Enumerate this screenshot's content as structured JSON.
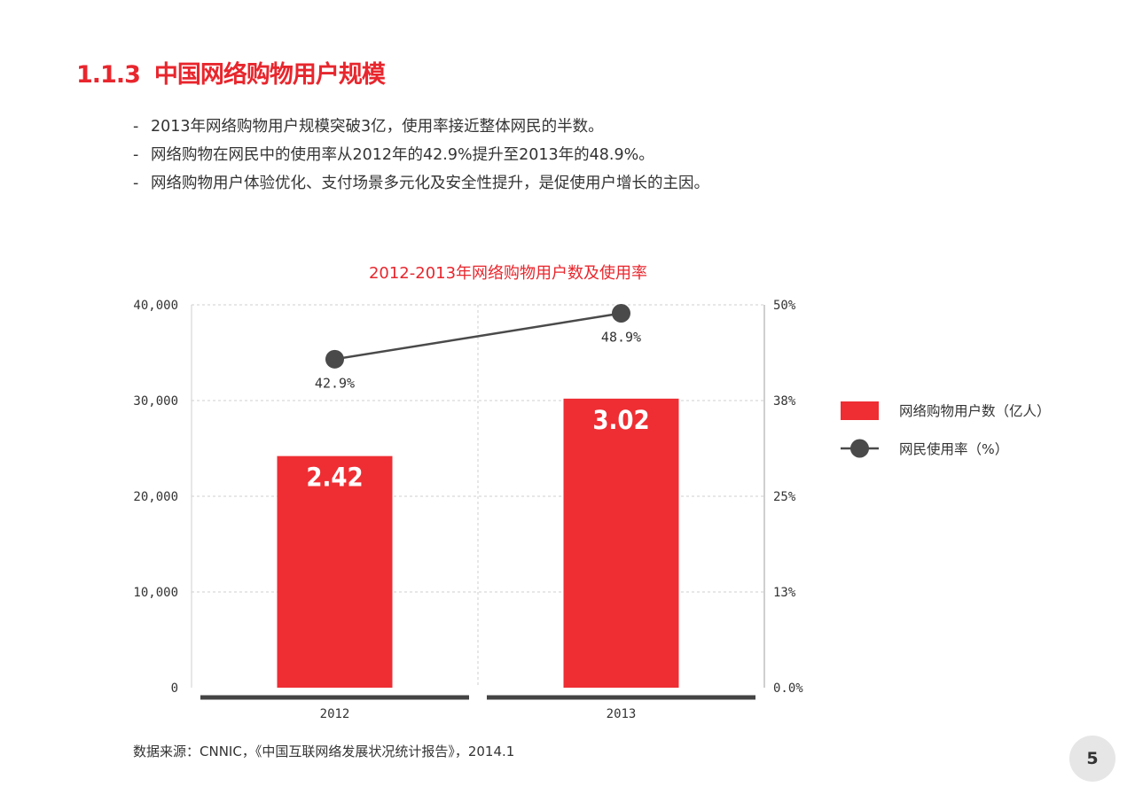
{
  "header": {
    "section_number": "1.1.3",
    "title": "中国网络购物用户规模"
  },
  "bullets": [
    "2013年网络购物用户规模突破3亿，使用率接近整体网民的半数。",
    "网络购物在网民中的使用率从2012年的42.9%提升至2013年的48.9%。",
    "网络购物用户体验优化、支付场景多元化及安全性提升，是促使用户增长的主因。"
  ],
  "bullet_marker": "-",
  "chart_data": {
    "type": "bar",
    "title": "2012-2013年网络购物用户数及使用率",
    "categories": [
      "2012",
      "2013"
    ],
    "series": [
      {
        "name": "网络购物用户数（亿人）",
        "type": "bar",
        "axis": "left",
        "values": [
          24200,
          30200
        ],
        "data_labels": [
          "2.42",
          "3.02"
        ],
        "color": "#ee2e33"
      },
      {
        "name": "网民使用率（%）",
        "type": "line",
        "axis": "right",
        "values": [
          42.9,
          48.9
        ],
        "data_labels": [
          "42.9%",
          "48.9%"
        ],
        "color": "#4a4a4a"
      }
    ],
    "y_left": {
      "ylim": [
        0,
        40000
      ],
      "ticks": [
        "0",
        "10,000",
        "20,000",
        "30,000",
        "40,000"
      ]
    },
    "y_right": {
      "ylim": [
        0,
        50
      ],
      "ticks": [
        "0.0%",
        "13%",
        "25%",
        "38%",
        "50%"
      ]
    },
    "grid": true,
    "legend_position": "right"
  },
  "source_note": "数据来源：CNNIC，《中国互联网络发展状况统计报告》，2014.1",
  "page_number": "5"
}
